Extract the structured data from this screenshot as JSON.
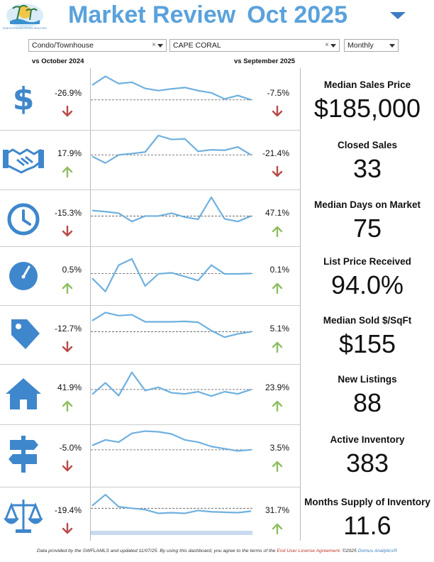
{
  "header": {
    "title": "Market Review",
    "date": "Oct 2025",
    "logo_text": "BONITA SPRINGS-ESTERO REALTORS"
  },
  "filters": {
    "property_type": "Condo/Townhouse",
    "city": "CAPE CORAL",
    "period": "Monthly"
  },
  "columns": {
    "vs_year": "vs October 2024",
    "vs_month": "vs September 2025"
  },
  "colors": {
    "accent": "#5aa2dc",
    "line": "#6fb0df",
    "up_arrow": "#8fbf62",
    "down_arrow": "#b84a48",
    "icon": "#3f87cc"
  },
  "metrics": [
    {
      "icon": "dollar-icon",
      "label": "Median Sales Price",
      "value": "$185,000",
      "yoy": "-26.9%",
      "yoy_dir": "down",
      "mom": "-7.5%",
      "mom_dir": "down",
      "trend": [
        0.55,
        0.95,
        0.62,
        0.68,
        0.4,
        0.3,
        0.38,
        0.44,
        0.3,
        0.2,
        -0.08,
        0.08,
        -0.12
      ],
      "baseline": -0.12
    },
    {
      "icon": "handshake-icon",
      "label": "Closed Sales",
      "value": "33",
      "yoy": "17.9%",
      "yoy_dir": "up",
      "mom": "-21.4%",
      "mom_dir": "down",
      "trend": [
        0.05,
        -0.25,
        0.12,
        0.18,
        0.25,
        1.0,
        0.82,
        0.85,
        0.28,
        0.35,
        0.33,
        0.48,
        0.12
      ],
      "baseline": 0.12
    },
    {
      "icon": "clock-icon",
      "label": "Median Days on Market",
      "value": "75",
      "yoy": "-15.3%",
      "yoy_dir": "down",
      "mom": "47.1%",
      "mom_dir": "up",
      "trend": [
        0.3,
        0.25,
        0.18,
        -0.2,
        0.05,
        0.05,
        0.18,
        0.0,
        -0.1,
        0.9,
        -0.08,
        -0.2,
        0.05
      ],
      "baseline": 0.05
    },
    {
      "icon": "gauge-icon",
      "label": "List Price Received",
      "value": "94.0%",
      "yoy": "0.5%",
      "yoy_dir": "up",
      "mom": "0.1%",
      "mom_dir": "up",
      "trend": [
        -0.2,
        -0.8,
        0.4,
        0.68,
        -0.55,
        0.0,
        0.05,
        -0.12,
        -0.3,
        0.4,
        0.0,
        0.0,
        0.02
      ],
      "baseline": 0.02
    },
    {
      "icon": "tag-icon",
      "label": "Median Sold $/SqFt",
      "value": "$155",
      "yoy": "-12.7%",
      "yoy_dir": "down",
      "mom": "5.1%",
      "mom_dir": "up",
      "trend": [
        0.55,
        0.92,
        0.78,
        0.82,
        0.5,
        0.5,
        0.5,
        0.52,
        0.48,
        0.1,
        -0.2,
        -0.05,
        0.05
      ],
      "baseline": 0.05
    },
    {
      "icon": "house-icon",
      "label": "New Listings",
      "value": "88",
      "yoy": "41.9%",
      "yoy_dir": "up",
      "mom": "23.9%",
      "mom_dir": "up",
      "trend": [
        -0.12,
        0.4,
        -0.18,
        0.88,
        0.05,
        0.2,
        -0.05,
        -0.1,
        0.0,
        -0.2,
        0.0,
        -0.1,
        0.1
      ],
      "baseline": 0.1
    },
    {
      "icon": "signpost-icon",
      "label": "Active Inventory",
      "value": "383",
      "yoy": "-5.0%",
      "yoy_dir": "down",
      "mom": "3.5%",
      "mom_dir": "up",
      "trend": [
        0.3,
        0.55,
        0.45,
        0.85,
        0.95,
        0.92,
        0.82,
        0.55,
        0.45,
        0.25,
        0.15,
        0.05,
        0.1
      ],
      "baseline": 0.1
    },
    {
      "icon": "scales-icon",
      "label": "Months Supply of Inventory",
      "value": "11.6",
      "yoy": "-19.4%",
      "yoy_dir": "down",
      "mom": "31.7%",
      "mom_dir": "up",
      "trend": [
        0.4,
        0.9,
        0.35,
        0.28,
        0.22,
        0.05,
        0.08,
        0.05,
        0.18,
        0.12,
        0.1,
        0.08,
        0.15
      ],
      "baseline": 0.28
    }
  ],
  "footer": {
    "prefix": "Data provided by the SWFLAMLS and updated 11/07/25.  By using this dashboard, you agree to the terms of the ",
    "eula": "End User License Agreement",
    "copyright": ".  ©2025 ",
    "company": "Domus Analytics®"
  }
}
